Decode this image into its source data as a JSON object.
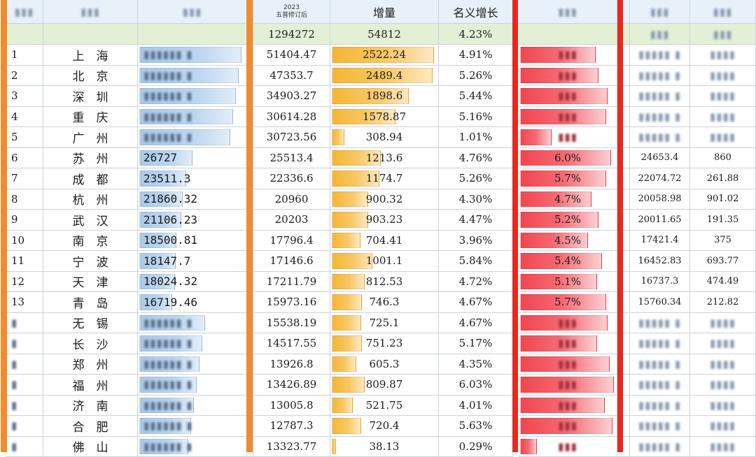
{
  "header": {
    "year": "2023",
    "revised": "五普修订后",
    "increment": "增量",
    "nominal_growth": "名义增长"
  },
  "total": {
    "gdp": "1294272",
    "increment": "54812",
    "growth": "4.23%"
  },
  "rows": [
    {
      "rank": "1",
      "city": "上　海",
      "gdp2024": "",
      "gdp2023": "51404.47",
      "increment": "2522.24",
      "inc_value": 2522.24,
      "growth": "4.91%",
      "real_growth": "",
      "real_value": 5.0,
      "col_a": "",
      "col_b": ""
    },
    {
      "rank": "2",
      "city": "北　京",
      "gdp2024": "",
      "gdp2023": "47353.7",
      "increment": "2489.4",
      "inc_value": 2489.4,
      "growth": "5.26%",
      "real_growth": "",
      "real_value": 5.2,
      "col_a": "",
      "col_b": ""
    },
    {
      "rank": "3",
      "city": "深　圳",
      "gdp2024": "",
      "gdp2023": "34903.27",
      "increment": "1898.6",
      "inc_value": 1898.6,
      "growth": "5.44%",
      "real_growth": "",
      "real_value": 5.8,
      "col_a": "",
      "col_b": ""
    },
    {
      "rank": "4",
      "city": "重　庆",
      "gdp2024": "",
      "gdp2023": "30614.28",
      "increment": "1578.87",
      "inc_value": 1578.87,
      "growth": "5.16%",
      "real_growth": "",
      "real_value": 5.7,
      "col_a": "",
      "col_b": ""
    },
    {
      "rank": "5",
      "city": "广　州",
      "gdp2024": "",
      "gdp2023": "30723.56",
      "increment": "308.94",
      "inc_value": 308.94,
      "growth": "1.01%",
      "real_growth": "",
      "real_value": 2.1,
      "col_a": "",
      "col_b": ""
    },
    {
      "rank": "6",
      "city": "苏　州",
      "gdp2024": "26727",
      "gdp2023": "25513.4",
      "increment": "1213.6",
      "inc_value": 1213.6,
      "growth": "4.76%",
      "real_growth": "6.0%",
      "real_value": 6.0,
      "col_a": "24653.4",
      "col_b": "860"
    },
    {
      "rank": "7",
      "city": "成　都",
      "gdp2024": "23511.3",
      "gdp2023": "22336.6",
      "increment": "1174.7",
      "inc_value": 1174.7,
      "growth": "5.26%",
      "real_growth": "5.7%",
      "real_value": 5.7,
      "col_a": "22074.72",
      "col_b": "261.88"
    },
    {
      "rank": "8",
      "city": "杭　州",
      "gdp2024": "21860.32",
      "gdp2023": "20960",
      "increment": "900.32",
      "inc_value": 900.32,
      "growth": "4.30%",
      "real_growth": "4.7%",
      "real_value": 4.7,
      "col_a": "20058.98",
      "col_b": "901.02"
    },
    {
      "rank": "9",
      "city": "武　汉",
      "gdp2024": "21106.23",
      "gdp2023": "20203",
      "increment": "903.23",
      "inc_value": 903.23,
      "growth": "4.47%",
      "real_growth": "5.2%",
      "real_value": 5.2,
      "col_a": "20011.65",
      "col_b": "191.35"
    },
    {
      "rank": "10",
      "city": "南　京",
      "gdp2024": "18500.81",
      "gdp2023": "17796.4",
      "increment": "704.41",
      "inc_value": 704.41,
      "growth": "3.96%",
      "real_growth": "4.5%",
      "real_value": 4.5,
      "col_a": "17421.4",
      "col_b": "375"
    },
    {
      "rank": "11",
      "city": "宁　波",
      "gdp2024": "18147.7",
      "gdp2023": "17146.6",
      "increment": "1001.1",
      "inc_value": 1001.1,
      "growth": "5.84%",
      "real_growth": "5.4%",
      "real_value": 5.4,
      "col_a": "16452.83",
      "col_b": "693.77"
    },
    {
      "rank": "12",
      "city": "天　津",
      "gdp2024": "18024.32",
      "gdp2023": "17211.79",
      "increment": "812.53",
      "inc_value": 812.53,
      "growth": "4.72%",
      "real_growth": "5.1%",
      "real_value": 5.1,
      "col_a": "16737.3",
      "col_b": "474.49"
    },
    {
      "rank": "13",
      "city": "青　岛",
      "gdp2024": "16719.46",
      "gdp2023": "15973.16",
      "increment": "746.3",
      "inc_value": 746.3,
      "growth": "4.67%",
      "real_growth": "5.7%",
      "real_value": 5.7,
      "col_a": "15760.34",
      "col_b": "212.82"
    },
    {
      "rank": "",
      "city": "无　锡",
      "gdp2024": "",
      "gdp2023": "15538.19",
      "increment": "725.1",
      "inc_value": 725.1,
      "growth": "4.67%",
      "real_growth": "",
      "real_value": 5.8,
      "col_a": "",
      "col_b": ""
    },
    {
      "rank": "",
      "city": "长　沙",
      "gdp2024": "",
      "gdp2023": "14517.55",
      "increment": "751.23",
      "inc_value": 751.23,
      "growth": "5.17%",
      "real_growth": "",
      "real_value": 5.1,
      "col_a": "",
      "col_b": ""
    },
    {
      "rank": "",
      "city": "郑　州",
      "gdp2024": "",
      "gdp2023": "13926.8",
      "increment": "605.3",
      "inc_value": 605.3,
      "growth": "4.35%",
      "real_growth": "",
      "real_value": 5.9,
      "col_a": "",
      "col_b": ""
    },
    {
      "rank": "",
      "city": "福　州",
      "gdp2024": "",
      "gdp2023": "13426.89",
      "increment": "809.87",
      "inc_value": 809.87,
      "growth": "6.03%",
      "real_growth": "",
      "real_value": 6.2,
      "col_a": "",
      "col_b": ""
    },
    {
      "rank": "",
      "city": "济　南",
      "gdp2024": "",
      "gdp2023": "13005.8",
      "increment": "521.75",
      "inc_value": 521.75,
      "growth": "4.01%",
      "real_growth": "",
      "real_value": 5.6,
      "col_a": "",
      "col_b": ""
    },
    {
      "rank": "",
      "city": "合　肥",
      "gdp2024": "",
      "gdp2023": "12787.3",
      "increment": "720.4",
      "inc_value": 720.4,
      "growth": "5.63%",
      "real_growth": "",
      "real_value": 6.1,
      "col_a": "",
      "col_b": ""
    },
    {
      "rank": "",
      "city": "佛　山",
      "gdp2024": "",
      "gdp2023": "13323.77",
      "increment": "38.13",
      "inc_value": 38.13,
      "growth": "0.29%",
      "real_growth": "",
      "real_value": 1.1,
      "col_a": "",
      "col_b": ""
    }
  ],
  "scales": {
    "increment_max": 2522.24,
    "real_growth_max": 6.2
  },
  "colors": {
    "orange_frame": "#f28a2e",
    "red_frame": "#e8281e",
    "increment_bar": "#f5b533",
    "growth_bar": "#f2454f"
  }
}
